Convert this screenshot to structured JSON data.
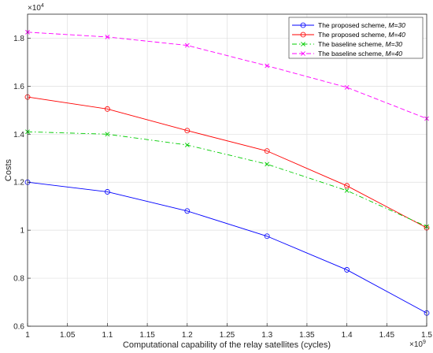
{
  "chart_data": {
    "type": "line",
    "xlabel": "Computational capability of the relay satellites (cycles)",
    "ylabel": "Costs",
    "x_multiplier_label": "×10",
    "x_multiplier_exp": "9",
    "y_multiplier_label": "×10",
    "y_multiplier_exp": "4",
    "x": [
      1,
      1.1,
      1.2,
      1.3,
      1.4,
      1.5
    ],
    "xlim": [
      1,
      1.5
    ],
    "ylim": [
      0.6,
      1.9
    ],
    "xticks": [
      1,
      1.05,
      1.1,
      1.15,
      1.2,
      1.25,
      1.3,
      1.35,
      1.4,
      1.45,
      1.5
    ],
    "xtick_labels": [
      "1",
      "1.05",
      "1.1",
      "1.15",
      "1.2",
      "1.25",
      "1.3",
      "1.35",
      "1.4",
      "1.45",
      "1.5"
    ],
    "yticks": [
      0.6,
      0.8,
      1.0,
      1.2,
      1.4,
      1.6,
      1.8
    ],
    "ytick_labels": [
      "0.6",
      "0.8",
      "1",
      "1.2",
      "1.4",
      "1.6",
      "1.8"
    ],
    "grid": true,
    "legend_position": "top-right",
    "series": [
      {
        "name_prefix": "The proposed scheme,",
        "name_m": "M=30",
        "values": [
          1.2,
          1.16,
          1.08,
          0.975,
          0.835,
          0.655
        ],
        "color": "#0000ff",
        "dash": "solid",
        "marker": "circle"
      },
      {
        "name_prefix": "The proposed scheme,",
        "name_m": "M=40",
        "values": [
          1.555,
          1.505,
          1.415,
          1.33,
          1.185,
          1.01
        ],
        "color": "#ff0000",
        "dash": "solid",
        "marker": "circle"
      },
      {
        "name_prefix": "The baseline scheme,",
        "name_m": "M=30",
        "values": [
          1.41,
          1.4,
          1.355,
          1.275,
          1.165,
          1.015
        ],
        "color": "#00cc00",
        "dash": "dashdot",
        "marker": "x"
      },
      {
        "name_prefix": "The baseline scheme,",
        "name_m": "M=40",
        "values": [
          1.825,
          1.805,
          1.77,
          1.685,
          1.595,
          1.465
        ],
        "color": "#ff00ff",
        "dash": "dashed",
        "marker": "x"
      }
    ]
  }
}
